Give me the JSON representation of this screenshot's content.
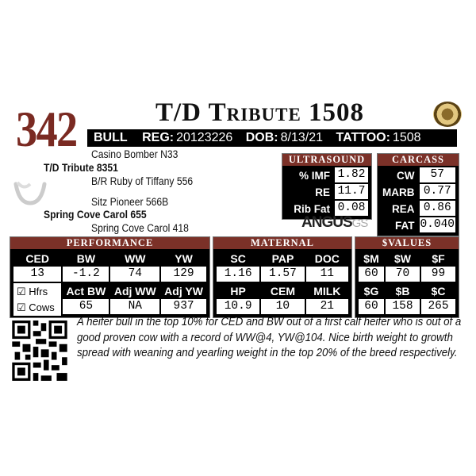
{
  "lot_number": "342",
  "name": "T/D Tribute 1508",
  "info": {
    "sex": "BULL",
    "reg_label": "REG:",
    "reg": "20123226",
    "dob_label": "DOB:",
    "dob": "8/13/21",
    "tattoo_label": "TATTOO:",
    "tattoo": "1508"
  },
  "pedigree": {
    "sire_sire": "Casino Bomber N33",
    "sire": "T/D Tribute 8351",
    "sire_dam": "B/R Ruby of Tiffany 556",
    "dam_sire": "Sitz Pioneer 566B",
    "dam": "Spring Cove Carol 655",
    "dam_dam": "Spring Cove Carol 418"
  },
  "ultrasound": {
    "title": "ULTRASOUND",
    "rows": [
      {
        "label": "% IMF",
        "value": "1.82"
      },
      {
        "label": "RE",
        "value": "11.7"
      },
      {
        "label": "Rib Fat",
        "value": "0.08"
      }
    ]
  },
  "carcass": {
    "title": "CARCASS",
    "rows": [
      {
        "label": "CW",
        "value": "57"
      },
      {
        "label": "MARB",
        "value": "0.77"
      },
      {
        "label": "REA",
        "value": "0.86"
      },
      {
        "label": "FAT",
        "value": "0.040"
      }
    ]
  },
  "logo": {
    "text": "ANGUS",
    "suffix": "GS"
  },
  "performance": {
    "title": "PERFORMANCE",
    "h1": [
      "CED",
      "BW",
      "WW",
      "YW"
    ],
    "v1": [
      "13",
      "-1.2",
      "74",
      "129"
    ],
    "h2": [
      "Act BW",
      "Adj WW",
      "Adj YW"
    ],
    "v2": [
      "65",
      "NA",
      "937"
    ],
    "checks": [
      {
        "label": "Hfrs",
        "checked": true
      },
      {
        "label": "Cows",
        "checked": true
      }
    ]
  },
  "maternal": {
    "title": "MATERNAL",
    "h1": [
      "SC",
      "PAP",
      "DOC"
    ],
    "v1": [
      "1.16",
      "1.57",
      "11"
    ],
    "h2": [
      "HP",
      "CEM",
      "MILK"
    ],
    "v2": [
      "10.9",
      "10",
      "21"
    ]
  },
  "values": {
    "title": "$VALUES",
    "h1": [
      "$M",
      "$W",
      "$F"
    ],
    "v1": [
      "60",
      "70",
      "99"
    ],
    "h2": [
      "$G",
      "$B",
      "$C"
    ],
    "v2": [
      "60",
      "158",
      "265"
    ]
  },
  "description": "A heifer bull in the top 10% for CED and BW out of a first calf heifer who is out of a good proven cow with a record of WW@4, YW@104. Nice birth weight to growth spread with weaning and yearling weight in the top 20% of the breed respectively.",
  "colors": {
    "accent": "#7b3128",
    "lot": "#7a2a22"
  }
}
